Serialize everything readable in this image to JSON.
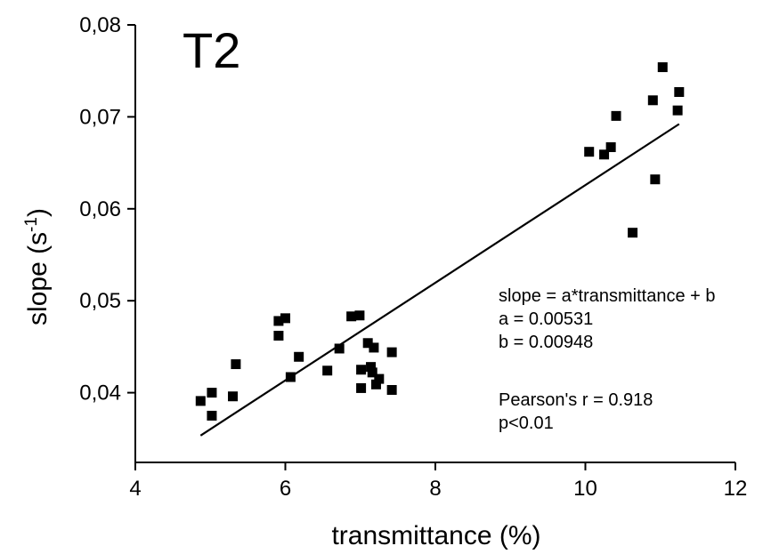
{
  "chart_data": {
    "type": "scatter",
    "title": "T2",
    "xlabel": "transmittance (%)",
    "ylabel": "slope (s",
    "ylabel_superscript": "-1",
    "ylabel_suffix": ")",
    "xlim": [
      4,
      12
    ],
    "ylim": [
      0.03,
      0.08
    ],
    "grid": false,
    "x_ticks": [
      {
        "value": 4,
        "label": "4"
      },
      {
        "value": 6,
        "label": "6"
      },
      {
        "value": 8,
        "label": "8"
      },
      {
        "value": 10,
        "label": "10"
      },
      {
        "value": 12,
        "label": "12"
      }
    ],
    "y_ticks": [
      {
        "value": 0.04,
        "label": "0,04"
      },
      {
        "value": 0.05,
        "label": "0,05"
      },
      {
        "value": 0.06,
        "label": "0,06"
      },
      {
        "value": 0.07,
        "label": "0,07"
      },
      {
        "value": 0.08,
        "label": "0,08"
      }
    ],
    "points": [
      {
        "x": 4.87,
        "y": 0.0391
      },
      {
        "x": 5.02,
        "y": 0.04
      },
      {
        "x": 5.02,
        "y": 0.0375
      },
      {
        "x": 5.3,
        "y": 0.0396
      },
      {
        "x": 5.34,
        "y": 0.0431
      },
      {
        "x": 5.91,
        "y": 0.0478
      },
      {
        "x": 5.91,
        "y": 0.0462
      },
      {
        "x": 6.0,
        "y": 0.0481
      },
      {
        "x": 6.07,
        "y": 0.0417
      },
      {
        "x": 6.18,
        "y": 0.0439
      },
      {
        "x": 6.56,
        "y": 0.0424
      },
      {
        "x": 6.72,
        "y": 0.0448
      },
      {
        "x": 6.88,
        "y": 0.0483
      },
      {
        "x": 6.99,
        "y": 0.0484
      },
      {
        "x": 7.01,
        "y": 0.0425
      },
      {
        "x": 7.01,
        "y": 0.0405
      },
      {
        "x": 7.1,
        "y": 0.0454
      },
      {
        "x": 7.14,
        "y": 0.0428
      },
      {
        "x": 7.16,
        "y": 0.0422
      },
      {
        "x": 7.18,
        "y": 0.0449
      },
      {
        "x": 7.21,
        "y": 0.0409
      },
      {
        "x": 7.25,
        "y": 0.0415
      },
      {
        "x": 7.42,
        "y": 0.0444
      },
      {
        "x": 7.42,
        "y": 0.0403
      },
      {
        "x": 10.05,
        "y": 0.0662
      },
      {
        "x": 10.25,
        "y": 0.0659
      },
      {
        "x": 10.34,
        "y": 0.0667
      },
      {
        "x": 10.41,
        "y": 0.0701
      },
      {
        "x": 10.63,
        "y": 0.0574
      },
      {
        "x": 10.9,
        "y": 0.0718
      },
      {
        "x": 10.93,
        "y": 0.0632
      },
      {
        "x": 11.03,
        "y": 0.0754
      },
      {
        "x": 11.23,
        "y": 0.0707
      },
      {
        "x": 11.25,
        "y": 0.0727
      }
    ],
    "fit_line": {
      "x": [
        4.87,
        11.25
      ],
      "slope": 0.00531,
      "intercept": 0.00948
    },
    "annotations": [
      "slope = a*transmittance + b",
      "a = 0.00531",
      "b = 0.00948",
      "Pearson's r = 0.918",
      "p<0.01"
    ]
  }
}
